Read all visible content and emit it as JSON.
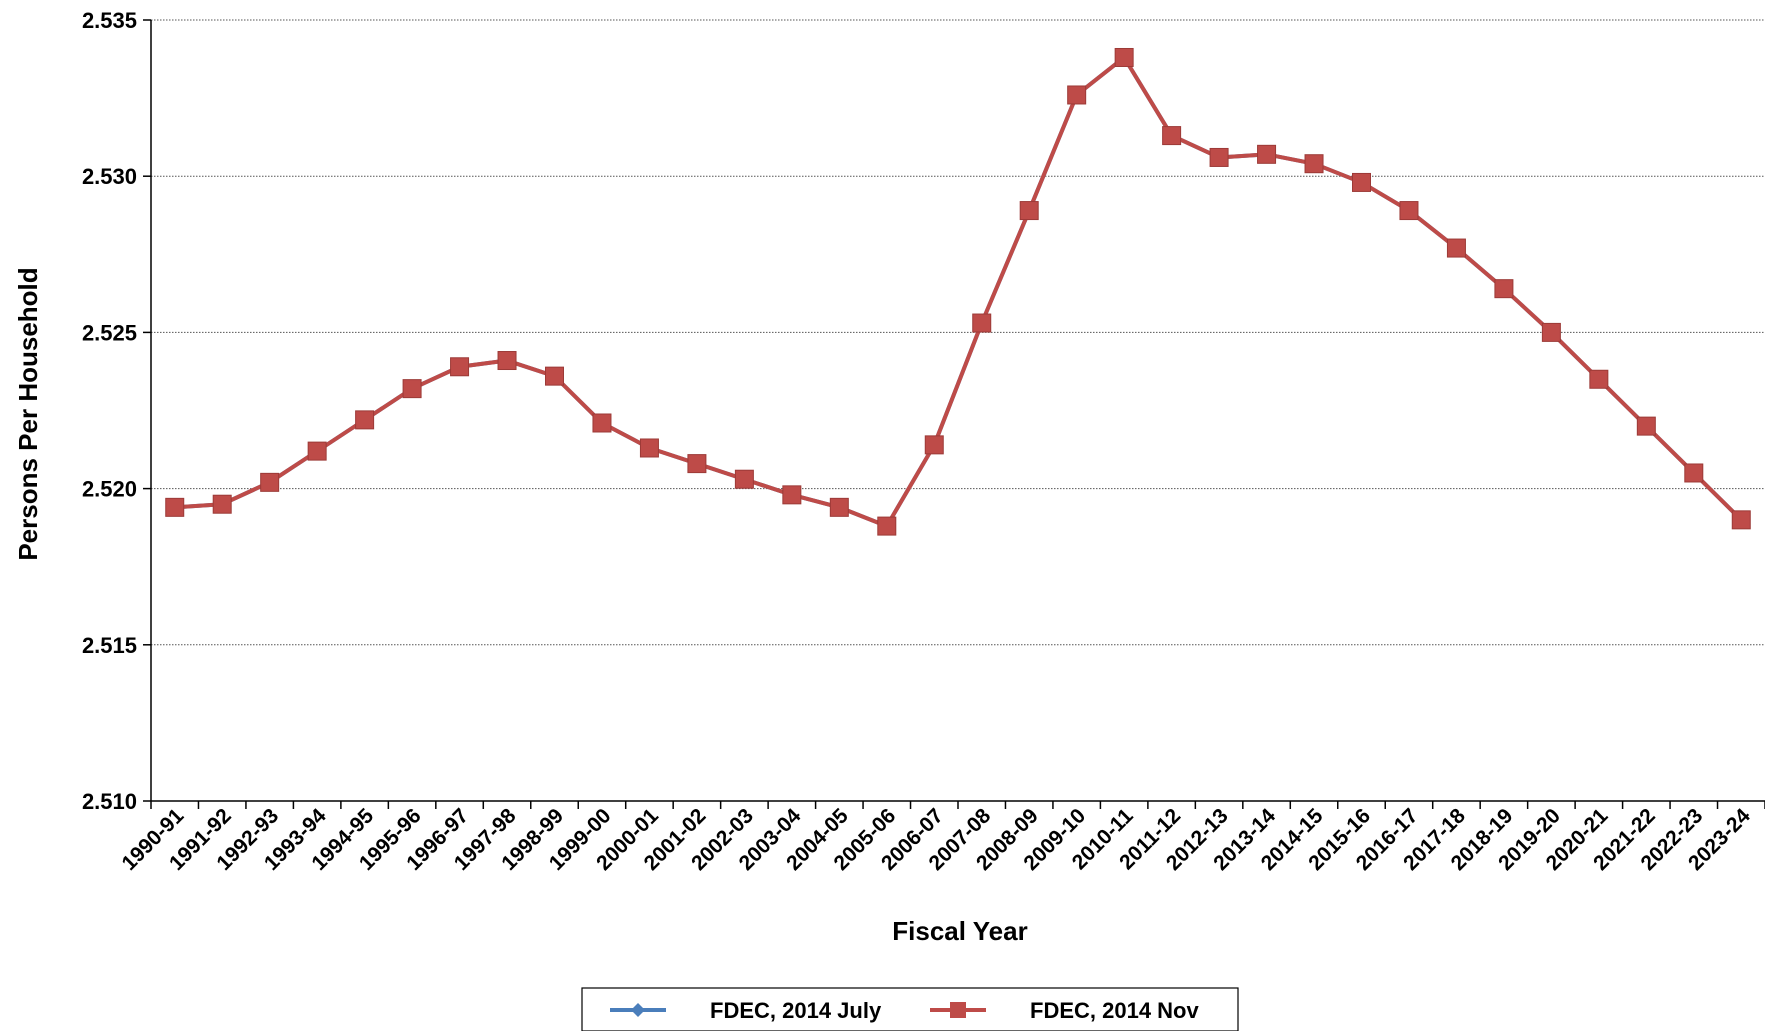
{
  "chart_data": {
    "type": "line",
    "xlabel": "Fiscal Year",
    "ylabel": "Persons Per Household",
    "ylim": [
      2.51,
      2.535
    ],
    "yticks": [
      "2.510",
      "2.515",
      "2.520",
      "2.525",
      "2.530",
      "2.535"
    ],
    "grid": "horizontal",
    "legend_position": "bottom",
    "categories": [
      "1990-91",
      "1991-92",
      "1992-93",
      "1993-94",
      "1994-95",
      "1995-96",
      "1996-97",
      "1997-98",
      "1998-99",
      "1999-00",
      "2000-01",
      "2001-02",
      "2002-03",
      "2003-04",
      "2004-05",
      "2005-06",
      "2006-07",
      "2007-08",
      "2008-09",
      "2009-10",
      "2010-11",
      "2011-12",
      "2012-13",
      "2013-14",
      "2014-15",
      "2015-16",
      "2016-17",
      "2017-18",
      "2018-19",
      "2019-20",
      "2020-21",
      "2021-22",
      "2022-23",
      "2023-24"
    ],
    "series": [
      {
        "name": "FDEC, 2014 July",
        "color": "#4A7EBB",
        "marker": "diamond",
        "values": [
          2.5194,
          2.5195,
          2.5202,
          2.5212,
          2.5222,
          2.5232,
          2.5239,
          2.5241,
          2.5236,
          2.5221,
          2.5213,
          2.5208,
          2.5203,
          2.5198,
          2.5194,
          2.5188,
          2.5214,
          2.5253,
          2.5289,
          2.5326,
          2.5338,
          2.5313,
          2.5306,
          2.5307,
          2.5304,
          2.5298,
          2.5289,
          2.5277,
          2.5264,
          2.525,
          2.5235,
          2.522,
          2.5205,
          2.519
        ]
      },
      {
        "name": "FDEC, 2014 Nov",
        "color": "#BE4B48",
        "marker": "square",
        "values": [
          2.5194,
          2.5195,
          2.5202,
          2.5212,
          2.5222,
          2.5232,
          2.5239,
          2.5241,
          2.5236,
          2.5221,
          2.5213,
          2.5208,
          2.5203,
          2.5198,
          2.5194,
          2.5188,
          2.5214,
          2.5253,
          2.5289,
          2.5326,
          2.5338,
          2.5313,
          2.5306,
          2.5307,
          2.5304,
          2.5298,
          2.5289,
          2.5277,
          2.5264,
          2.525,
          2.5235,
          2.522,
          2.5205,
          2.519
        ]
      }
    ]
  }
}
